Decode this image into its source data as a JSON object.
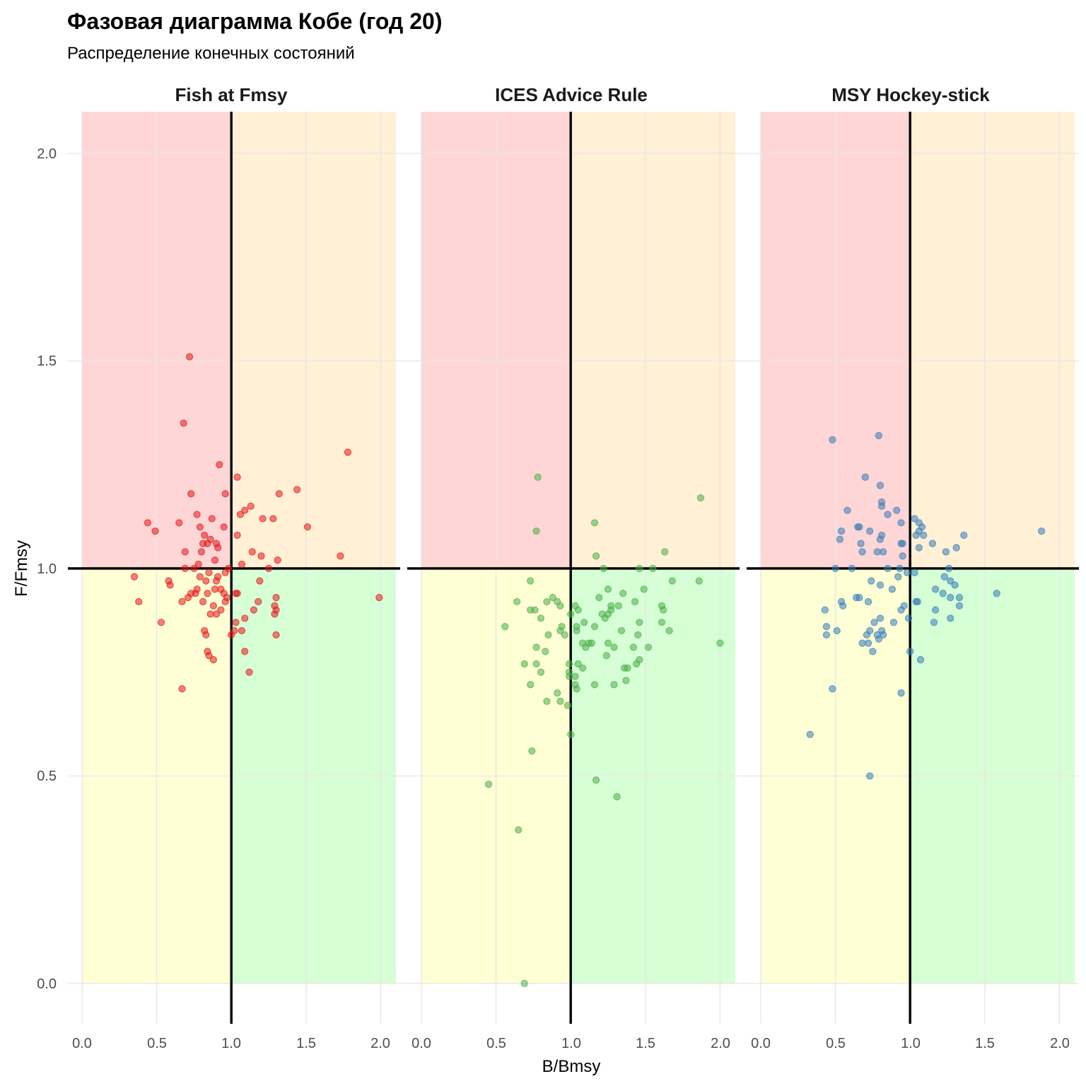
{
  "chart_data": {
    "type": "scatter",
    "title": "Фазовая диаграмма Кобе (год 20)",
    "subtitle": "Распределение конечных состояний",
    "xlabel": "B/Bmsy",
    "ylabel": "F/Fmsy",
    "xlim": [
      -0.05,
      2.07
    ],
    "ylim": [
      -0.09,
      2.1
    ],
    "x_ticks": [
      "0.0",
      "0.5",
      "1.0",
      "1.5",
      "2.0"
    ],
    "y_ticks": [
      "0.0",
      "0.5",
      "1.0",
      "1.5",
      "2.0"
    ],
    "reference_lines": {
      "x": 1.0,
      "y": 1.0
    },
    "quadrant_colors": {
      "top_left": "#ffd6d6",
      "top_right": "#fff0d6",
      "bottom_left": "#ffffd6",
      "bottom_right": "#d6ffd6"
    },
    "grid": true,
    "legend": "none",
    "panels": [
      {
        "name": "Fish at Fmsy",
        "color": "#e41a1c",
        "points": [
          [
            0.72,
            1.51
          ],
          [
            0.68,
            1.35
          ],
          [
            0.92,
            1.25
          ],
          [
            1.78,
            1.28
          ],
          [
            1.04,
            1.22
          ],
          [
            1.44,
            1.19
          ],
          [
            0.73,
            1.18
          ],
          [
            0.96,
            1.18
          ],
          [
            1.32,
            1.18
          ],
          [
            1.13,
            1.15
          ],
          [
            1.09,
            1.14
          ],
          [
            0.77,
            1.13
          ],
          [
            1.06,
            1.13
          ],
          [
            0.87,
            1.12
          ],
          [
            1.21,
            1.12
          ],
          [
            1.28,
            1.12
          ],
          [
            0.44,
            1.11
          ],
          [
            0.65,
            1.11
          ],
          [
            0.79,
            1.1
          ],
          [
            1.51,
            1.1
          ],
          [
            0.95,
            1.1
          ],
          [
            0.49,
            1.09
          ],
          [
            0.82,
            1.08
          ],
          [
            1.04,
            1.08
          ],
          [
            0.86,
            1.07
          ],
          [
            0.9,
            1.06
          ],
          [
            0.81,
            1.06
          ],
          [
            0.84,
            1.06
          ],
          [
            0.91,
            1.05
          ],
          [
            0.8,
            1.04
          ],
          [
            0.69,
            1.04
          ],
          [
            1.14,
            1.04
          ],
          [
            1.2,
            1.03
          ],
          [
            1.73,
            1.03
          ],
          [
            1.31,
            1.02
          ],
          [
            0.89,
            1.02
          ],
          [
            0.78,
            1.01
          ],
          [
            1.07,
            1.01
          ],
          [
            1.25,
            1.0
          ],
          [
            0.75,
            1.0
          ],
          [
            0.98,
            1.0
          ],
          [
            0.69,
            1.0
          ],
          [
            0.96,
            0.99
          ],
          [
            0.85,
            0.99
          ],
          [
            0.91,
            0.98
          ],
          [
            0.79,
            0.98
          ],
          [
            0.35,
            0.98
          ],
          [
            0.9,
            0.97
          ],
          [
            0.83,
            0.97
          ],
          [
            0.58,
            0.97
          ],
          [
            1.19,
            0.97
          ],
          [
            0.59,
            0.96
          ],
          [
            0.89,
            0.95
          ],
          [
            0.93,
            0.95
          ],
          [
            0.77,
            0.95
          ],
          [
            0.84,
            0.94
          ],
          [
            1.03,
            0.94
          ],
          [
            0.95,
            0.94
          ],
          [
            1.04,
            0.94
          ],
          [
            0.76,
            0.94
          ],
          [
            0.73,
            0.94
          ],
          [
            0.71,
            0.93
          ],
          [
            1.99,
            0.93
          ],
          [
            0.97,
            0.93
          ],
          [
            1.3,
            0.93
          ],
          [
            0.81,
            0.92
          ],
          [
            0.96,
            0.92
          ],
          [
            0.67,
            0.92
          ],
          [
            0.38,
            0.92
          ],
          [
            1.18,
            0.92
          ],
          [
            0.88,
            0.91
          ],
          [
            1.29,
            0.91
          ],
          [
            0.93,
            0.9
          ],
          [
            1.15,
            0.9
          ],
          [
            1.3,
            0.9
          ],
          [
            0.86,
            0.89
          ],
          [
            0.9,
            0.89
          ],
          [
            1.29,
            0.89
          ],
          [
            1.09,
            0.88
          ],
          [
            1.03,
            0.87
          ],
          [
            0.53,
            0.87
          ],
          [
            1.02,
            0.85
          ],
          [
            1.07,
            0.85
          ],
          [
            0.82,
            0.85
          ],
          [
            0.83,
            0.84
          ],
          [
            1.3,
            0.84
          ],
          [
            1.0,
            0.84
          ],
          [
            0.84,
            0.8
          ],
          [
            1.09,
            0.8
          ],
          [
            0.85,
            0.79
          ],
          [
            0.88,
            0.78
          ],
          [
            1.12,
            0.75
          ],
          [
            0.67,
            0.71
          ]
        ]
      },
      {
        "name": "ICES Advice Rule",
        "color": "#4daf4a",
        "points": [
          [
            0.78,
            1.22
          ],
          [
            1.87,
            1.17
          ],
          [
            1.16,
            1.11
          ],
          [
            0.77,
            1.09
          ],
          [
            1.63,
            1.04
          ],
          [
            1.17,
            1.03
          ],
          [
            1.22,
            1.0
          ],
          [
            1.46,
            1.0
          ],
          [
            1.55,
            1.0
          ],
          [
            0.73,
            0.97
          ],
          [
            1.86,
            0.97
          ],
          [
            1.68,
            0.97
          ],
          [
            1.25,
            0.95
          ],
          [
            1.49,
            0.95
          ],
          [
            1.35,
            0.94
          ],
          [
            1.19,
            0.93
          ],
          [
            1.43,
            0.92
          ],
          [
            0.88,
            0.93
          ],
          [
            0.84,
            0.92
          ],
          [
            0.64,
            0.92
          ],
          [
            0.91,
            0.92
          ],
          [
            1.32,
            0.91
          ],
          [
            1.27,
            0.91
          ],
          [
            1.61,
            0.91
          ],
          [
            0.93,
            0.91
          ],
          [
            0.73,
            0.9
          ],
          [
            0.76,
            0.9
          ],
          [
            1.05,
            0.9
          ],
          [
            1.03,
            0.91
          ],
          [
            1.27,
            0.9
          ],
          [
            1.25,
            0.89
          ],
          [
            1.21,
            0.89
          ],
          [
            1.62,
            0.9
          ],
          [
            1.0,
            0.89
          ],
          [
            0.8,
            0.88
          ],
          [
            1.23,
            0.88
          ],
          [
            1.46,
            0.87
          ],
          [
            1.09,
            0.87
          ],
          [
            1.61,
            0.87
          ],
          [
            0.56,
            0.86
          ],
          [
            1.04,
            0.86
          ],
          [
            1.16,
            0.86
          ],
          [
            0.94,
            0.86
          ],
          [
            1.66,
            0.85
          ],
          [
            1.04,
            0.85
          ],
          [
            1.34,
            0.85
          ],
          [
            0.96,
            0.84
          ],
          [
            0.93,
            0.85
          ],
          [
            0.85,
            0.84
          ],
          [
            1.45,
            0.84
          ],
          [
            1.12,
            0.82
          ],
          [
            1.14,
            0.82
          ],
          [
            1.08,
            0.82
          ],
          [
            2.0,
            0.82
          ],
          [
            1.25,
            0.82
          ],
          [
            1.29,
            0.81
          ],
          [
            0.77,
            0.81
          ],
          [
            1.52,
            0.81
          ],
          [
            1.42,
            0.81
          ],
          [
            1.1,
            0.81
          ],
          [
            0.83,
            0.8
          ],
          [
            1.24,
            0.79
          ],
          [
            1.46,
            0.78
          ],
          [
            0.77,
            0.77
          ],
          [
            1.44,
            0.77
          ],
          [
            1.05,
            0.77
          ],
          [
            0.69,
            0.77
          ],
          [
            0.99,
            0.77
          ],
          [
            1.38,
            0.76
          ],
          [
            1.08,
            0.76
          ],
          [
            1.36,
            0.76
          ],
          [
            0.8,
            0.75
          ],
          [
            0.99,
            0.75
          ],
          [
            0.99,
            0.74
          ],
          [
            1.03,
            0.74
          ],
          [
            1.37,
            0.73
          ],
          [
            1.03,
            0.72
          ],
          [
            1.29,
            0.72
          ],
          [
            1.16,
            0.72
          ],
          [
            0.73,
            0.72
          ],
          [
            1.04,
            0.71
          ],
          [
            0.91,
            0.7
          ],
          [
            0.84,
            0.68
          ],
          [
            0.93,
            0.68
          ],
          [
            0.98,
            0.67
          ],
          [
            1.0,
            0.6
          ],
          [
            0.74,
            0.56
          ],
          [
            1.17,
            0.49
          ],
          [
            0.45,
            0.48
          ],
          [
            1.31,
            0.45
          ],
          [
            0.65,
            0.37
          ],
          [
            0.69,
            0.0
          ]
        ]
      },
      {
        "name": "MSY Hockey-stick",
        "color": "#377eb8",
        "points": [
          [
            0.79,
            1.32
          ],
          [
            0.48,
            1.31
          ],
          [
            0.7,
            1.22
          ],
          [
            0.8,
            1.2
          ],
          [
            0.81,
            1.16
          ],
          [
            0.81,
            1.15
          ],
          [
            0.58,
            1.14
          ],
          [
            0.91,
            1.14
          ],
          [
            1.03,
            1.12
          ],
          [
            0.85,
            1.13
          ],
          [
            0.94,
            1.11
          ],
          [
            1.06,
            1.11
          ],
          [
            1.08,
            1.1
          ],
          [
            0.66,
            1.1
          ],
          [
            0.65,
            1.1
          ],
          [
            1.06,
            1.09
          ],
          [
            0.54,
            1.09
          ],
          [
            0.73,
            1.09
          ],
          [
            1.88,
            1.09
          ],
          [
            1.36,
            1.08
          ],
          [
            0.81,
            1.08
          ],
          [
            0.8,
            1.07
          ],
          [
            1.04,
            1.08
          ],
          [
            1.09,
            1.08
          ],
          [
            0.53,
            1.07
          ],
          [
            0.67,
            1.06
          ],
          [
            0.95,
            1.06
          ],
          [
            0.94,
            1.06
          ],
          [
            1.15,
            1.06
          ],
          [
            1.31,
            1.05
          ],
          [
            1.06,
            1.05
          ],
          [
            0.68,
            1.04
          ],
          [
            0.78,
            1.04
          ],
          [
            0.82,
            1.04
          ],
          [
            1.24,
            1.04
          ],
          [
            0.95,
            1.03
          ],
          [
            0.93,
            1.0
          ],
          [
            0.61,
            1.0
          ],
          [
            0.5,
            1.0
          ],
          [
            1.26,
            1.0
          ],
          [
            0.85,
            1.0
          ],
          [
            1.03,
            0.99
          ],
          [
            0.98,
            0.99
          ],
          [
            1.23,
            0.98
          ],
          [
            0.92,
            0.98
          ],
          [
            0.74,
            0.97
          ],
          [
            1.27,
            0.97
          ],
          [
            0.8,
            0.96
          ],
          [
            1.3,
            0.96
          ],
          [
            1.17,
            0.95
          ],
          [
            0.88,
            0.95
          ],
          [
            1.22,
            0.94
          ],
          [
            1.58,
            0.94
          ],
          [
            0.64,
            0.93
          ],
          [
            0.66,
            0.93
          ],
          [
            1.27,
            0.93
          ],
          [
            1.33,
            0.93
          ],
          [
            0.72,
            0.92
          ],
          [
            1.05,
            0.92
          ],
          [
            1.04,
            0.92
          ],
          [
            0.54,
            0.92
          ],
          [
            0.55,
            0.91
          ],
          [
            0.96,
            0.91
          ],
          [
            1.33,
            0.91
          ],
          [
            0.43,
            0.9
          ],
          [
            1.17,
            0.9
          ],
          [
            0.94,
            0.9
          ],
          [
            0.8,
            0.88
          ],
          [
            0.99,
            0.88
          ],
          [
            1.27,
            0.88
          ],
          [
            0.76,
            0.87
          ],
          [
            0.89,
            0.87
          ],
          [
            1.16,
            0.87
          ],
          [
            0.44,
            0.86
          ],
          [
            0.81,
            0.85
          ],
          [
            0.73,
            0.85
          ],
          [
            0.71,
            0.84
          ],
          [
            0.44,
            0.84
          ],
          [
            0.51,
            0.85
          ],
          [
            0.82,
            0.84
          ],
          [
            0.78,
            0.84
          ],
          [
            0.79,
            0.83
          ],
          [
            0.72,
            0.82
          ],
          [
            0.68,
            0.82
          ],
          [
            1.0,
            0.8
          ],
          [
            0.75,
            0.8
          ],
          [
            1.07,
            0.78
          ],
          [
            0.48,
            0.71
          ],
          [
            0.94,
            0.7
          ],
          [
            0.33,
            0.6
          ],
          [
            0.73,
            0.5
          ]
        ]
      }
    ]
  }
}
